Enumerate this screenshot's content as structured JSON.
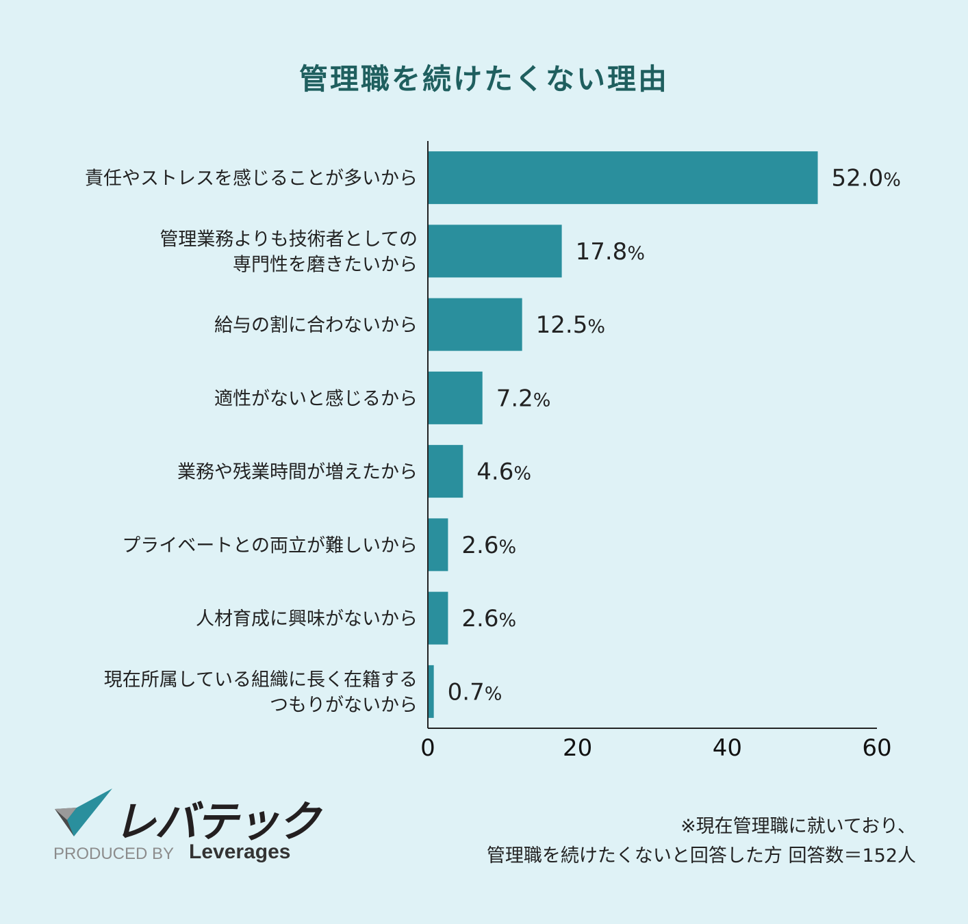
{
  "chart_data": {
    "type": "bar",
    "orientation": "horizontal",
    "title": "管理職を続けたくない理由",
    "categories": [
      [
        "責任やストレスを感じることが多いから"
      ],
      [
        "管理業務よりも技術者としての",
        "専門性を磨きたいから"
      ],
      [
        "給与の割に合わないから"
      ],
      [
        "適性がないと感じるから"
      ],
      [
        "業務や残業時間が増えたから"
      ],
      [
        "プライベートとの両立が難しいから"
      ],
      [
        "人材育成に興味がないから"
      ],
      [
        "現在所属している組織に長く在籍する",
        "つもりがないから"
      ]
    ],
    "values": [
      52.0,
      17.8,
      12.5,
      7.2,
      4.6,
      2.6,
      2.6,
      0.7
    ],
    "value_labels": [
      "52.0",
      "17.8",
      "12.5",
      "7.2",
      "4.6",
      "2.6",
      "2.6",
      "0.7"
    ],
    "value_suffix": "%",
    "xlim": [
      0,
      60
    ],
    "xticks": [
      "0",
      "20",
      "40",
      "60"
    ],
    "bar_color": "#2a8f9d",
    "grid": false
  },
  "brand": {
    "name": "レバテック",
    "produced_by": "PRODUCED BY",
    "company": "Leverages",
    "colors": {
      "teal": "#2a8f9d",
      "gray": "#9a9a9a",
      "dark": "#4a4a4a"
    }
  },
  "footnote": {
    "line1": "※現在管理職に就いており、",
    "line2": "管理職を続けたくないと回答した方 回答数＝152人"
  },
  "colors": {
    "background": "#dff2f6",
    "title": "#1f5f5f"
  }
}
